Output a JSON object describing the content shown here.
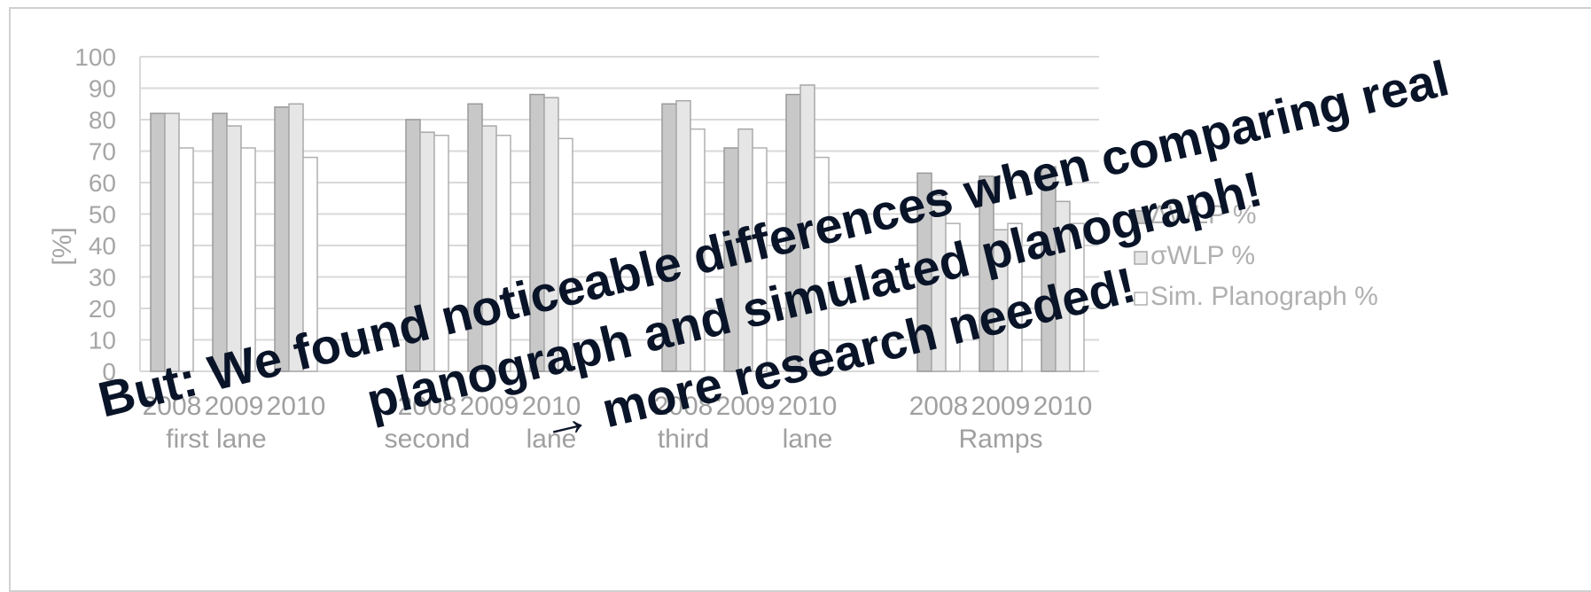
{
  "chart_data": {
    "type": "bar",
    "ylabel": "[%]",
    "ylim": [
      0,
      100
    ],
    "yticks": [
      0,
      10,
      20,
      30,
      40,
      50,
      60,
      70,
      80,
      90,
      100
    ],
    "grid": true,
    "legend_position": "right",
    "groups": [
      {
        "label_parts": [
          "first lane",
          "",
          ""
        ],
        "years": [
          "2008",
          "2009",
          "2010"
        ]
      },
      {
        "label_parts": [
          "second",
          "",
          "lane"
        ],
        "years": [
          "2008",
          "2009",
          "2010"
        ]
      },
      {
        "label_parts": [
          "third",
          "",
          "lane"
        ],
        "years": [
          "2008",
          "2009",
          "2010"
        ]
      },
      {
        "label_parts": [
          "Ramps",
          "",
          ""
        ],
        "years": [
          "2008",
          "2009",
          "2010"
        ]
      }
    ],
    "series": [
      {
        "name": "ΔWLP %",
        "color": "#c8c8c8",
        "values": [
          82,
          82,
          84,
          80,
          85,
          88,
          85,
          71,
          88,
          63,
          62,
          65
        ]
      },
      {
        "name": "σWLP %",
        "color": "#e6e6e6",
        "values": [
          82,
          78,
          85,
          76,
          78,
          87,
          86,
          77,
          91,
          56,
          45,
          54
        ]
      },
      {
        "name": "Sim. Planograph %",
        "color": "#ffffff",
        "values": [
          71,
          71,
          68,
          75,
          75,
          74,
          77,
          71,
          68,
          47,
          47,
          47
        ]
      }
    ]
  },
  "overlay": {
    "line1": "But: We found noticeable differences when comparing real",
    "line2": "planograph and simulated planograph!",
    "line3": "→ more research needed!"
  }
}
